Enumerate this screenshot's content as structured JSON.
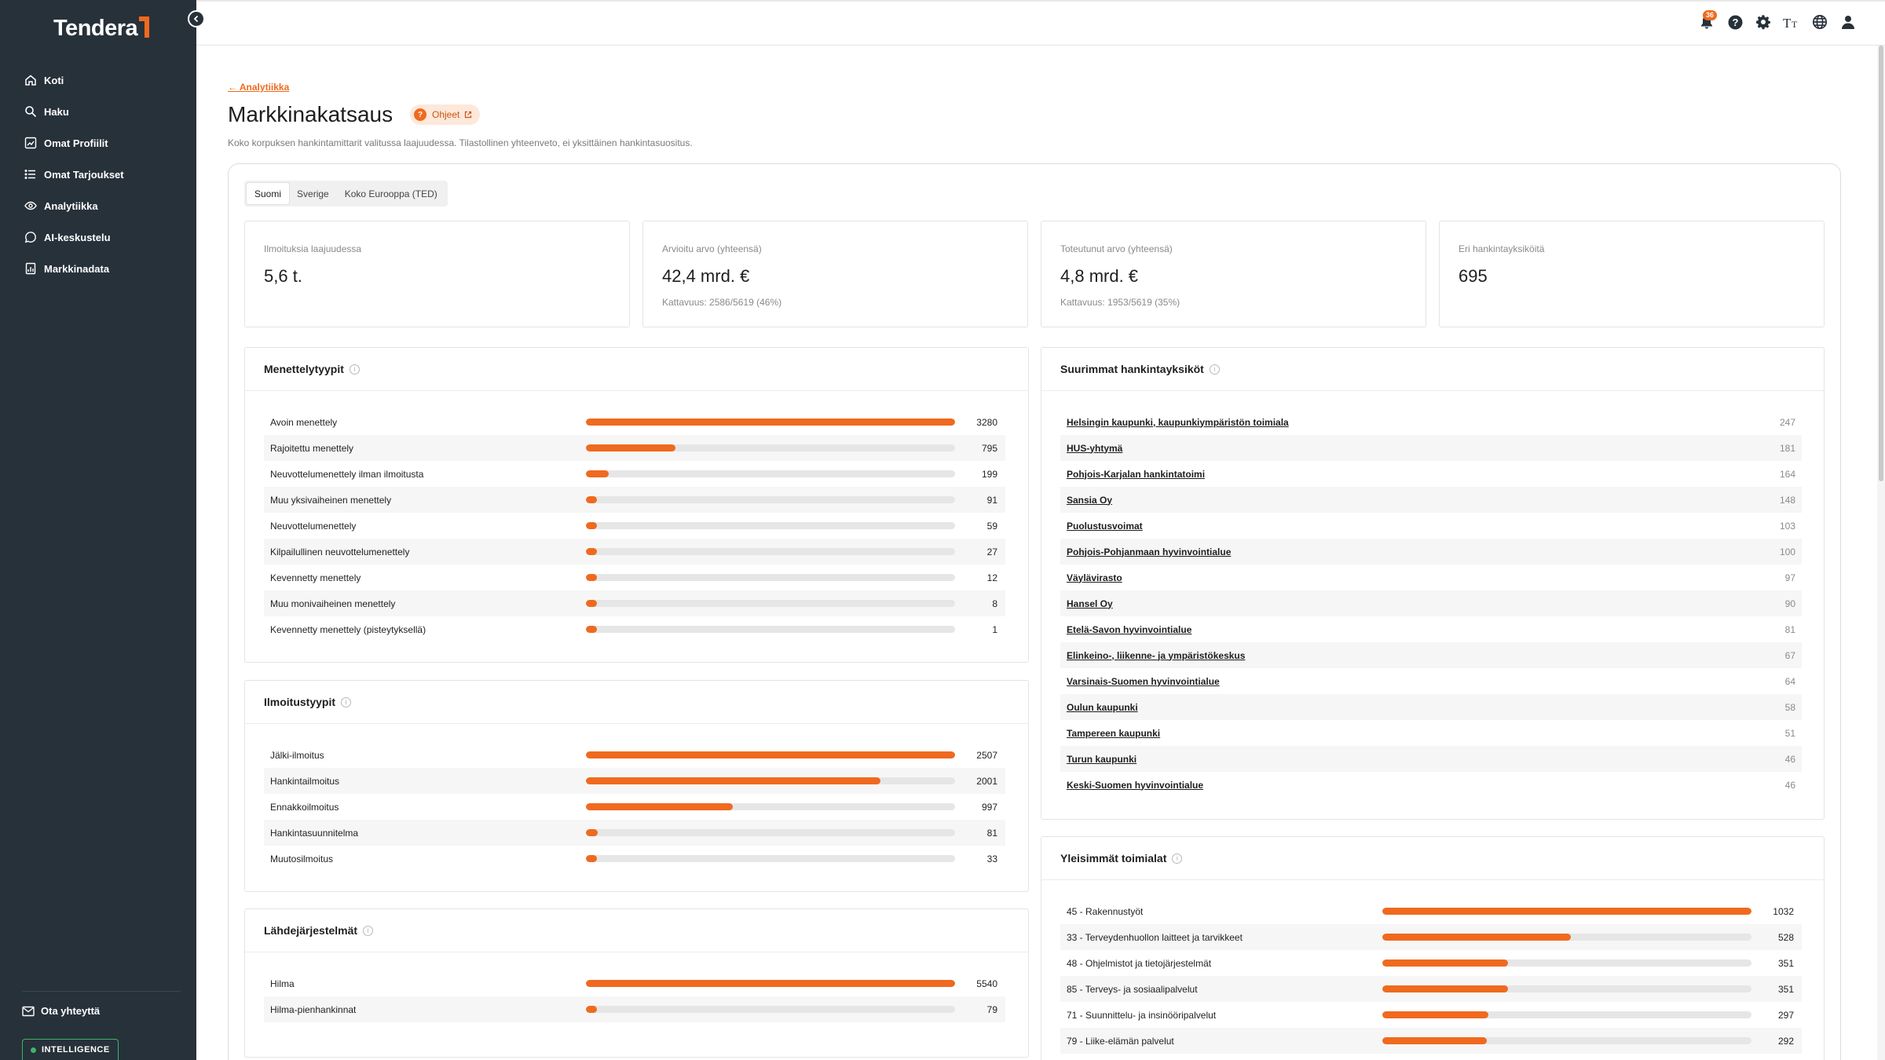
{
  "app": {
    "brand": "Tendera"
  },
  "sidebar": {
    "items": [
      {
        "label": "Koti",
        "icon": "home-icon"
      },
      {
        "label": "Haku",
        "icon": "search-icon"
      },
      {
        "label": "Omat Profiilit",
        "icon": "chart-icon"
      },
      {
        "label": "Omat Tarjoukset",
        "icon": "list-icon"
      },
      {
        "label": "Analytiikka",
        "icon": "eye-icon"
      },
      {
        "label": "AI-keskustelu",
        "icon": "chat-icon"
      },
      {
        "label": "Markkinadata",
        "icon": "report-icon"
      }
    ],
    "contact_label": "Ota yhteyttä",
    "intelligence_label": "INTELLIGENCE"
  },
  "topbar": {
    "notification_count": "36"
  },
  "page": {
    "back_label": "← Analytiikka",
    "title": "Markkinakatsaus",
    "help_label": "Ohjeet",
    "subtitle": "Koko korpuksen hankintamittarit valitussa laajuudessa. Tilastollinen yhteenveto, ei yksittäinen hankintasuositus."
  },
  "tabs": [
    {
      "label": "Suomi",
      "active": true
    },
    {
      "label": "Sverige",
      "active": false
    },
    {
      "label": "Koko Eurooppa (TED)",
      "active": false
    }
  ],
  "stats": [
    {
      "label": "Ilmoituksia laajuudessa",
      "value": "5,6 t.",
      "sub": ""
    },
    {
      "label": "Arvioitu arvo (yhteensä)",
      "value": "42,4 mrd. €",
      "sub": "Kattavuus: 2586/5619 (46%)"
    },
    {
      "label": "Toteutunut arvo (yhteensä)",
      "value": "4,8 mrd. €",
      "sub": "Kattavuus: 1953/5619 (35%)"
    },
    {
      "label": "Eri hankintayksiköitä",
      "value": "695",
      "sub": ""
    }
  ],
  "procedure_types": {
    "title": "Menettelytyypit",
    "rows": [
      {
        "name": "Avoin menettely",
        "value": 3280
      },
      {
        "name": "Rajoitettu menettely",
        "value": 795
      },
      {
        "name": "Neuvottelumenettely ilman ilmoitusta",
        "value": 199
      },
      {
        "name": "Muu yksivaiheinen menettely",
        "value": 91
      },
      {
        "name": "Neuvottelumenettely",
        "value": 59
      },
      {
        "name": "Kilpailullinen neuvottelumenettely",
        "value": 27
      },
      {
        "name": "Kevennetty menettely",
        "value": 12
      },
      {
        "name": "Muu monivaiheinen menettely",
        "value": 8
      },
      {
        "name": "Kevennetty menettely (pisteytyksellä)",
        "value": 1
      }
    ]
  },
  "notice_types": {
    "title": "Ilmoitustyypit",
    "rows": [
      {
        "name": "Jälki-ilmoitus",
        "value": 2507
      },
      {
        "name": "Hankintailmoitus",
        "value": 2001
      },
      {
        "name": "Ennakkoilmoitus",
        "value": 997
      },
      {
        "name": "Hankintasuunnitelma",
        "value": 81
      },
      {
        "name": "Muutosilmoitus",
        "value": 33
      }
    ]
  },
  "source_systems": {
    "title": "Lähdejärjestelmät",
    "rows": [
      {
        "name": "Hilma",
        "value": 5540
      },
      {
        "name": "Hilma-pienhankinnat",
        "value": 79
      }
    ]
  },
  "top_buyers": {
    "title": "Suurimmat hankintayksiköt",
    "rows": [
      {
        "name": "Helsingin kaupunki, kaupunkiympäristön toimiala",
        "value": "247"
      },
      {
        "name": "HUS-yhtymä",
        "value": "181"
      },
      {
        "name": "Pohjois-Karjalan hankintatoimi",
        "value": "164"
      },
      {
        "name": "Sansia Oy",
        "value": "148"
      },
      {
        "name": "Puolustusvoimat",
        "value": "103"
      },
      {
        "name": "Pohjois-Pohjanmaan hyvinvointialue",
        "value": "100"
      },
      {
        "name": "Väylävirasto",
        "value": "97"
      },
      {
        "name": "Hansel Oy",
        "value": "90"
      },
      {
        "name": "Etelä-Savon hyvinvointialue",
        "value": "81"
      },
      {
        "name": "Elinkeino-, liikenne- ja ympäristökeskus",
        "value": "67"
      },
      {
        "name": "Varsinais-Suomen hyvinvointialue",
        "value": "64"
      },
      {
        "name": "Oulun kaupunki",
        "value": "58"
      },
      {
        "name": "Tampereen kaupunki",
        "value": "51"
      },
      {
        "name": "Turun kaupunki",
        "value": "46"
      },
      {
        "name": "Keski-Suomen hyvinvointialue",
        "value": "46"
      }
    ]
  },
  "top_sectors": {
    "title": "Yleisimmät toimialat",
    "rows": [
      {
        "name": "45 - Rakennustyöt",
        "value": 1032
      },
      {
        "name": "33 - Terveydenhuollon laitteet ja tarvikkeet",
        "value": 528
      },
      {
        "name": "48 - Ohjelmistot ja tietojärjestelmät",
        "value": 351
      },
      {
        "name": "85 - Terveys- ja sosiaalipalvelut",
        "value": 351
      },
      {
        "name": "71 - Suunnittelu- ja insinööripalvelut",
        "value": 297
      },
      {
        "name": "79 - Liike-elämän palvelut",
        "value": 292
      }
    ]
  },
  "colors": {
    "accent": "#ef6a1f",
    "sidebar": "#27313a",
    "track": "#e6e6e6"
  }
}
